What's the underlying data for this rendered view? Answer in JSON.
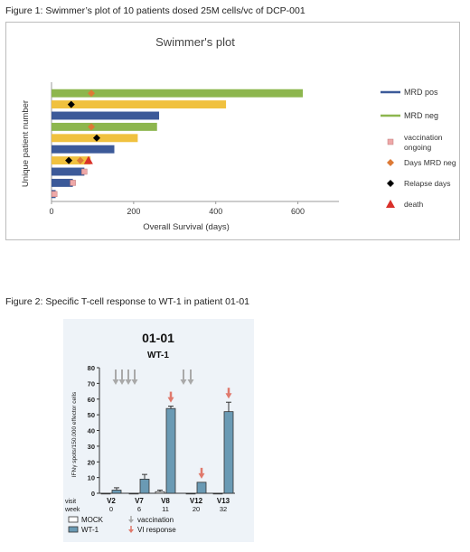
{
  "figure1": {
    "caption": "Figure 1: Swimmer’s plot of 10 patients dosed 25M cells/vc of DCP-001",
    "chart_data": {
      "type": "bar",
      "orientation": "horizontal",
      "title": "Swimmer's plot",
      "xlabel": "Overall Survival (days)",
      "ylabel": "Unique patient number",
      "xlim": [
        0,
        700
      ],
      "xticks": [
        "0",
        "200",
        "400",
        "600"
      ],
      "grid": false,
      "legend_position": "right",
      "colors": {
        "MRD pos": "#3c5a99",
        "MRD neg": "#8db64e",
        "MRD neg alt": "#f0c13f",
        "vaccination": "#eea8a8",
        "days_mrd_neg": "#dd7a36",
        "relapse": "#000000",
        "death": "#d9302a"
      },
      "bars": [
        {
          "value": 612,
          "status": "MRD neg",
          "color": "green"
        },
        {
          "value": 425,
          "status": "MRD neg",
          "color": "yellow"
        },
        {
          "value": 262,
          "status": "MRD pos",
          "color": "blue"
        },
        {
          "value": 257,
          "status": "MRD neg",
          "color": "green"
        },
        {
          "value": 210,
          "status": "MRD neg",
          "color": "yellow"
        },
        {
          "value": 153,
          "status": "MRD pos",
          "color": "blue"
        },
        {
          "value": 95,
          "status": "MRD neg",
          "color": "yellow"
        },
        {
          "value": 80,
          "status": "MRD pos",
          "color": "blue"
        },
        {
          "value": 52,
          "status": "MRD pos",
          "color": "blue"
        },
        {
          "value": 10,
          "status": "MRD pos",
          "color": "blue"
        }
      ],
      "markers": {
        "days_mrd_neg": [
          {
            "row": 0,
            "x": 97
          },
          {
            "row": 3,
            "x": 97
          },
          {
            "row": 6,
            "x": 70
          }
        ],
        "relapse_days": [
          {
            "row": 1,
            "x": 48
          },
          {
            "row": 4,
            "x": 110
          },
          {
            "row": 6,
            "x": 42
          }
        ],
        "death": [
          {
            "row": 6,
            "x": 90
          }
        ],
        "vaccination_ongoing": [
          {
            "row": 7,
            "x": 80
          },
          {
            "row": 8,
            "x": 52
          },
          {
            "row": 9,
            "x": 7
          }
        ]
      },
      "legend": [
        {
          "label": "MRD pos",
          "kind": "line",
          "color": "#3c5a99"
        },
        {
          "label": "MRD neg",
          "kind": "line",
          "color": "#8db64e"
        },
        {
          "label": "vaccination ongoing",
          "lines": [
            "vaccination",
            "ongoing"
          ],
          "kind": "square",
          "color": "#eea8a8"
        },
        {
          "label": "Days MRD neg",
          "lines": [
            "Days MRD neg"
          ],
          "kind": "diamond",
          "color": "#dd7a36"
        },
        {
          "label": "Relapse days",
          "lines": [
            "Relapse days"
          ],
          "kind": "diamond",
          "color": "#000000"
        },
        {
          "label": "death",
          "lines": [
            "death"
          ],
          "kind": "triangle",
          "color": "#d9302a"
        }
      ]
    }
  },
  "figure2": {
    "caption": "Figure 2: Specific T-cell response to WT-1 in patient 01-01",
    "chart_data": {
      "type": "bar",
      "title": "01-01",
      "subtitle": "WT-1",
      "ylabel": "IFNγ spots/150.000 effector cells",
      "ylim": [
        0,
        80
      ],
      "yticks": [
        "0",
        "10",
        "20",
        "30",
        "40",
        "50",
        "60",
        "70",
        "80"
      ],
      "visit_label": "visit",
      "week_label": "week",
      "categories": [
        "V2",
        "V7",
        "V8",
        "V12",
        "V13"
      ],
      "weeks": [
        "0",
        "6",
        "11",
        "20",
        "32"
      ],
      "series": [
        {
          "name": "MOCK",
          "values": [
            0,
            0,
            1,
            0,
            0
          ],
          "errors": [
            0,
            0,
            1,
            0,
            0
          ],
          "color": "#ffffff"
        },
        {
          "name": "WT-1",
          "values": [
            2,
            9,
            54,
            7,
            52
          ],
          "errors": [
            1.5,
            3,
            1.5,
            0,
            6
          ],
          "color": "#6a9ab4"
        }
      ],
      "vaccination_arrows": {
        "before_V7": 4,
        "between_V8_V12": 2
      },
      "vi_response_arrows": [
        "V8",
        "V12",
        "V13"
      ],
      "legend": {
        "mock": "MOCK",
        "wt1": "WT-1",
        "vaccination": "vaccination",
        "vi_response": "VI response"
      },
      "colors": {
        "vaccination_arrow": "#a9a9a9",
        "vi_arrow": "#e0796c",
        "background": "#eef3f8"
      }
    }
  }
}
